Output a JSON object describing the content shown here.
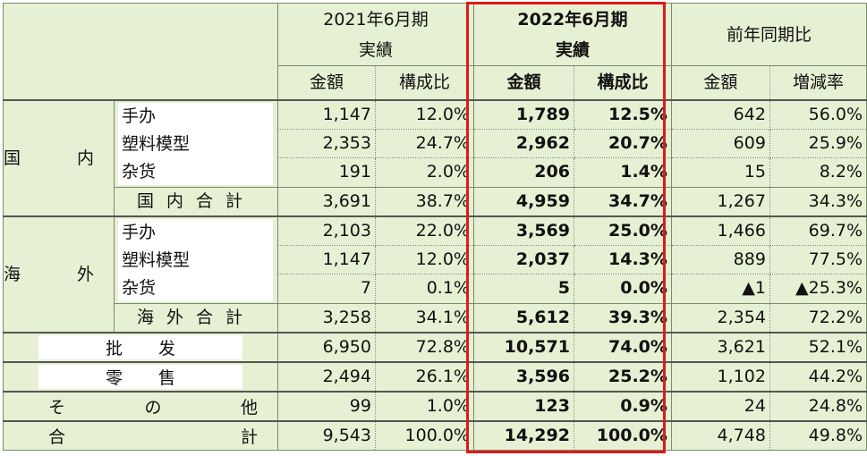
{
  "header": {
    "period_2021_line1": "2021年6月期",
    "period_2021_line2": "実績",
    "period_2022_line1": "2022年6月期",
    "period_2022_line2": "実績",
    "yoy": "前年同期比",
    "col_amount": "金額",
    "col_ratio": "構成比",
    "col_amount_2022": "金額",
    "col_ratio_2022": "構成比",
    "col_yoy_amount": "金額",
    "col_yoy_rate": "増減率"
  },
  "domestic": {
    "label": "国　内",
    "items": [
      "手办",
      "塑料模型",
      "杂货"
    ],
    "subtotal_label": "国内合計",
    "rows": [
      [
        "1,147",
        "12.0%",
        "1,789",
        "12.5%",
        "642",
        "56.0%"
      ],
      [
        "2,353",
        "24.7%",
        "2,962",
        "20.7%",
        "609",
        "25.9%"
      ],
      [
        "191",
        "2.0%",
        "206",
        "1.4%",
        "15",
        "8.2%"
      ]
    ],
    "subtotal": [
      "3,691",
      "38.7%",
      "4,959",
      "34.7%",
      "1,267",
      "34.3%"
    ]
  },
  "overseas": {
    "label": "海　外",
    "items": [
      "手办",
      "塑料模型",
      "杂货"
    ],
    "subtotal_label": "海外合計",
    "rows": [
      [
        "2,103",
        "22.0%",
        "3,569",
        "25.0%",
        "1,466",
        "69.7%"
      ],
      [
        "1,147",
        "12.0%",
        "2,037",
        "14.3%",
        "889",
        "77.5%"
      ],
      [
        "7",
        "0.1%",
        "5",
        "0.0%",
        "▲1",
        "▲25.3%"
      ]
    ],
    "subtotal": [
      "3,258",
      "34.1%",
      "5,612",
      "39.3%",
      "2,354",
      "72.2%"
    ]
  },
  "wholesale": {
    "label": "批发",
    "values": [
      "6,950",
      "72.8%",
      "10,571",
      "74.0%",
      "3,621",
      "52.1%"
    ]
  },
  "retail": {
    "label": "零售",
    "values": [
      "2,494",
      "26.1%",
      "3,596",
      "25.2%",
      "1,102",
      "44.2%"
    ]
  },
  "other": {
    "label_parts": [
      "そ",
      "の",
      "他"
    ],
    "values": [
      "99",
      "1.0%",
      "123",
      "0.9%",
      "24",
      "24.8%"
    ]
  },
  "total": {
    "label_parts": [
      "合",
      "計"
    ],
    "values": [
      "9,543",
      "100.0%",
      "14,292",
      "100.0%",
      "4,748",
      "49.8%"
    ]
  },
  "colors": {
    "cell_bg": "#e6f0d3",
    "highlight_border": "#e0191a"
  }
}
